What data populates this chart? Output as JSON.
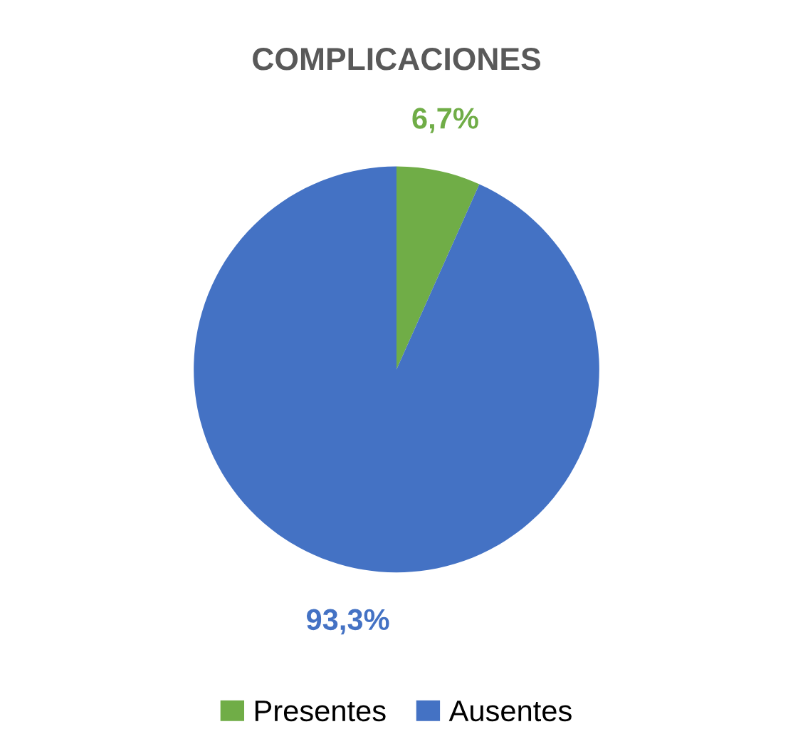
{
  "chart_data": {
    "type": "pie",
    "title": "COMPLICACIONES",
    "categories": [
      "Presentes",
      "Ausentes"
    ],
    "values": [
      6.7,
      93.3
    ],
    "colors": [
      "#70ad47",
      "#4472c4"
    ],
    "value_labels": [
      "6,7%",
      "93,3%"
    ],
    "legend": "bottom"
  }
}
